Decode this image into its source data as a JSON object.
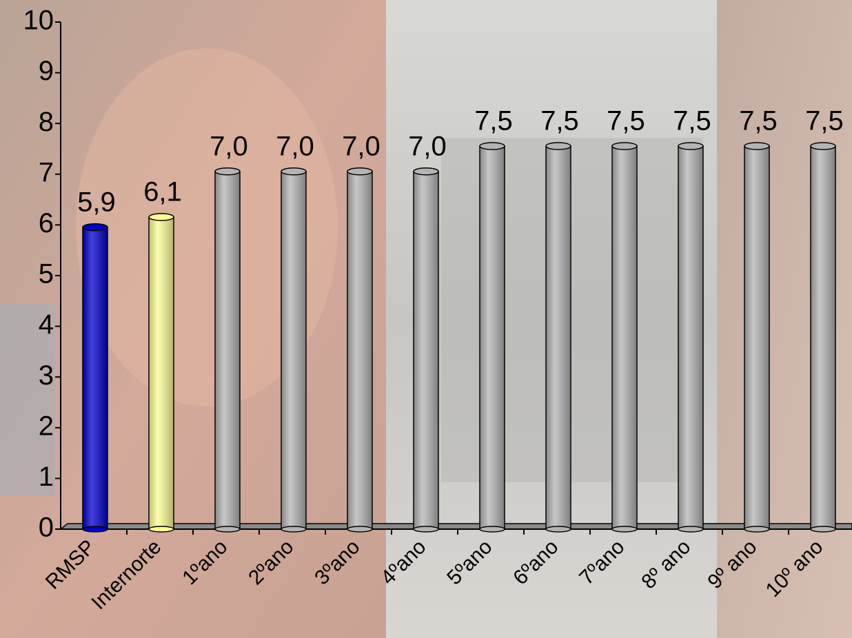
{
  "chart_data": {
    "type": "bar",
    "categories": [
      "RMSP",
      "Internorte",
      "1ºano",
      "2ºano",
      "3ºano",
      "4ºano",
      "5ºano",
      "6ºano",
      "7ºano",
      "8º ano",
      "9º ano",
      "10º ano"
    ],
    "values": [
      5.9,
      6.1,
      7.0,
      7.0,
      7.0,
      7.0,
      7.5,
      7.5,
      7.5,
      7.5,
      7.5,
      7.5
    ],
    "value_labels": [
      "5,9",
      "6,1",
      "7,0",
      "7,0",
      "7,0",
      "7,0",
      "7,5",
      "7,5",
      "7,5",
      "7,5",
      "7,5",
      "7,5"
    ],
    "colors": [
      "#0000cc",
      "#ffff99",
      "#b4b4b4",
      "#b4b4b4",
      "#b4b4b4",
      "#b4b4b4",
      "#b4b4b4",
      "#b4b4b4",
      "#b4b4b4",
      "#b4b4b4",
      "#b4b4b4",
      "#b4b4b4"
    ],
    "ylim": [
      0,
      10
    ],
    "yticks": [
      0,
      1,
      2,
      3,
      4,
      5,
      6,
      7,
      8,
      9,
      10
    ]
  }
}
